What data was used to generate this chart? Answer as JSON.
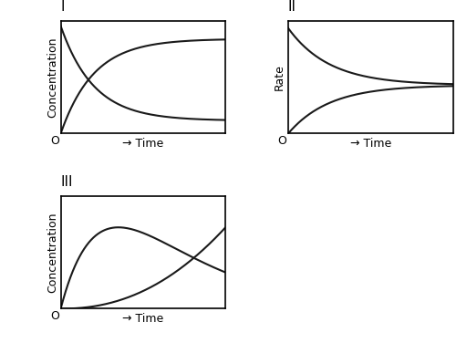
{
  "background_color": "#ffffff",
  "panel_bg": "#ffffff",
  "line_color": "#1a1a1a",
  "label_I": "I",
  "label_II": "II",
  "label_III": "III",
  "ylabel_I": "Concentration",
  "ylabel_II": "Rate",
  "ylabel_III": "Concentration",
  "xlabel": "→ Time",
  "origin_label": "O",
  "font_size_roman": 11,
  "font_size_axis": 9,
  "font_size_ylabel": 9,
  "line_width": 1.5,
  "spine_lw": 1.2
}
